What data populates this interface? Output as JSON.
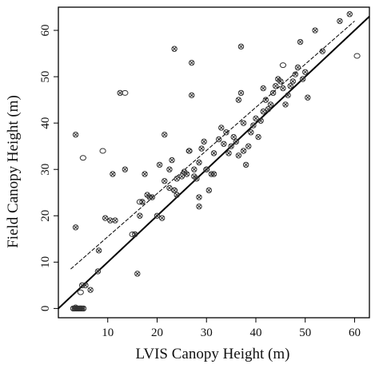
{
  "chart_data": {
    "type": "scatter",
    "xlabel": "LVIS Canopy Height (m)",
    "ylabel": "Field Canopy Height (m)",
    "xlim": [
      0,
      63
    ],
    "ylim": [
      -2,
      65
    ],
    "xticks": [
      10,
      20,
      30,
      40,
      50,
      60
    ],
    "yticks": [
      0,
      10,
      20,
      30,
      40,
      50,
      60
    ],
    "grid": false,
    "legend": "none",
    "series": [
      {
        "marker": "cross-circle",
        "points": [
          [
            3,
            0
          ],
          [
            3.3,
            0
          ],
          [
            3.6,
            0
          ],
          [
            3.9,
            0
          ],
          [
            4.2,
            0
          ],
          [
            4.5,
            0
          ],
          [
            4.8,
            0
          ],
          [
            5.1,
            0
          ],
          [
            3.5,
            0.2
          ],
          [
            3.5,
            17.5
          ],
          [
            3.5,
            37.5
          ],
          [
            4.8,
            5
          ],
          [
            5.5,
            5
          ],
          [
            6.5,
            4
          ],
          [
            8,
            8
          ],
          [
            8.2,
            12.5
          ],
          [
            9.5,
            19.5
          ],
          [
            10.5,
            19
          ],
          [
            11,
            29
          ],
          [
            11.5,
            19
          ],
          [
            12.5,
            46.5
          ],
          [
            13.5,
            30
          ],
          [
            15.5,
            16
          ],
          [
            16,
            7.5
          ],
          [
            16.5,
            20
          ],
          [
            17,
            23
          ],
          [
            17.5,
            29
          ],
          [
            18,
            24.5
          ],
          [
            18.5,
            24
          ],
          [
            19,
            24
          ],
          [
            20,
            20
          ],
          [
            20.5,
            31
          ],
          [
            21,
            19.5
          ],
          [
            21.5,
            27.5
          ],
          [
            21.5,
            37.5
          ],
          [
            22.5,
            26
          ],
          [
            22.5,
            30
          ],
          [
            23,
            32
          ],
          [
            23.5,
            25.5
          ],
          [
            23.5,
            56
          ],
          [
            24,
            24.5
          ],
          [
            24,
            28
          ],
          [
            25,
            28.5
          ],
          [
            25.5,
            29.5
          ],
          [
            26,
            29
          ],
          [
            26.5,
            34
          ],
          [
            27,
            46
          ],
          [
            27,
            53
          ],
          [
            27.5,
            28.5
          ],
          [
            27.5,
            30
          ],
          [
            28,
            28
          ],
          [
            28.5,
            22
          ],
          [
            28.5,
            24
          ],
          [
            28.5,
            31.5
          ],
          [
            29,
            34.5
          ],
          [
            29.5,
            36
          ],
          [
            30,
            30
          ],
          [
            30.5,
            25.5
          ],
          [
            31,
            29
          ],
          [
            31.5,
            29
          ],
          [
            31.5,
            33.5
          ],
          [
            32.5,
            36.5
          ],
          [
            33,
            39
          ],
          [
            33.5,
            35.5
          ],
          [
            34,
            38
          ],
          [
            34.5,
            33.5
          ],
          [
            35,
            35
          ],
          [
            35.5,
            37
          ],
          [
            36,
            36
          ],
          [
            36.5,
            33
          ],
          [
            36.5,
            45
          ],
          [
            37,
            46.5
          ],
          [
            37,
            56.5
          ],
          [
            37.5,
            34
          ],
          [
            37.5,
            40
          ],
          [
            38,
            31
          ],
          [
            38.5,
            35
          ],
          [
            39,
            38
          ],
          [
            39.5,
            39.5
          ],
          [
            40,
            41
          ],
          [
            40.5,
            37
          ],
          [
            41,
            40.5
          ],
          [
            41.5,
            42.5
          ],
          [
            41.5,
            47.5
          ],
          [
            42,
            45
          ],
          [
            42.5,
            43
          ],
          [
            43,
            44
          ],
          [
            43.5,
            46.5
          ],
          [
            44,
            48
          ],
          [
            44.5,
            49.5
          ],
          [
            45,
            49
          ],
          [
            45.5,
            47.5
          ],
          [
            46,
            44
          ],
          [
            46.5,
            46
          ],
          [
            47,
            48
          ],
          [
            47.5,
            49
          ],
          [
            48,
            50.5
          ],
          [
            48.5,
            52
          ],
          [
            49,
            57.5
          ],
          [
            49.5,
            49.5
          ],
          [
            50,
            51
          ],
          [
            50.5,
            45.5
          ],
          [
            52,
            60
          ],
          [
            53.5,
            55.5
          ],
          [
            57,
            62
          ],
          [
            59,
            63.5
          ]
        ]
      },
      {
        "marker": "open-circle",
        "points": [
          [
            4.2,
            0
          ],
          [
            4.5,
            3.5
          ],
          [
            5,
            32.5
          ],
          [
            9,
            34
          ],
          [
            13.5,
            46.5
          ],
          [
            15,
            16
          ],
          [
            16.5,
            23
          ],
          [
            23.5,
            25.5
          ],
          [
            26.5,
            34
          ],
          [
            30,
            30
          ],
          [
            45.5,
            52.5
          ],
          [
            60.5,
            54.5
          ]
        ]
      }
    ],
    "lines": [
      {
        "style": "solid",
        "x": [
          0,
          63
        ],
        "y": [
          0,
          63
        ]
      },
      {
        "style": "dashed",
        "x": [
          2.5,
          60
        ],
        "y": [
          8.5,
          62
        ]
      }
    ]
  }
}
